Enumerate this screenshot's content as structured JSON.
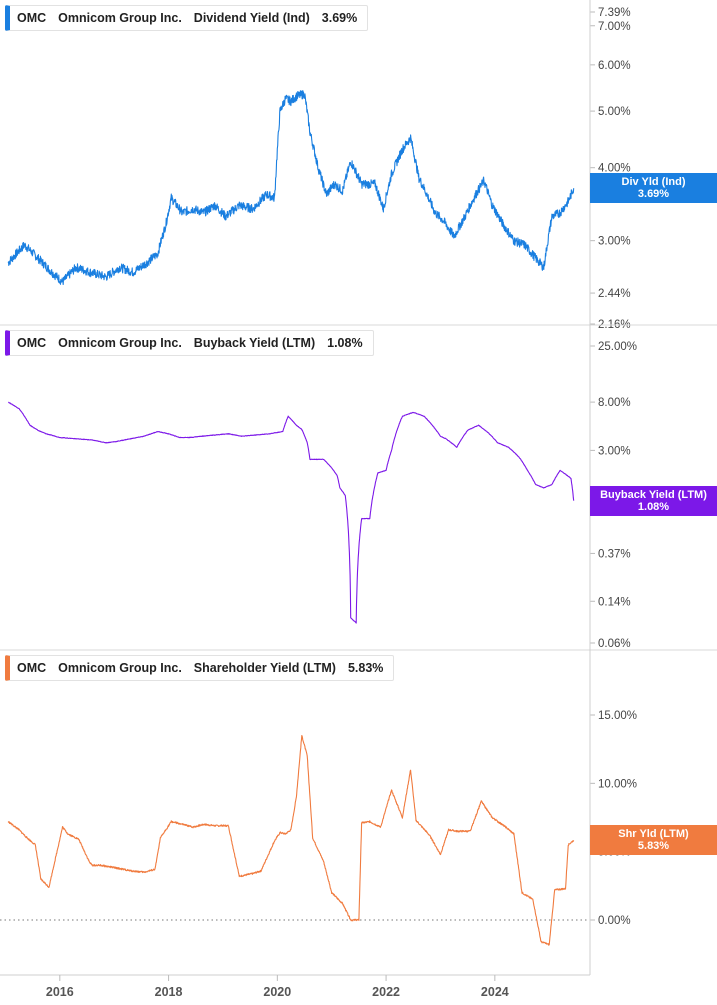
{
  "chart_data": [
    {
      "type": "line",
      "legend": {
        "ticker": "OMC",
        "company": "Omnicom Group Inc.",
        "metric": "Dividend Yield (Ind)",
        "value": "3.69%"
      },
      "tag": {
        "line1": "Div Yld (Ind)",
        "line2": "3.69%"
      },
      "color": "#1a7fe0",
      "y_scale": "log",
      "y_ticks": [
        "7.39%",
        "7.00%",
        "6.00%",
        "5.00%",
        "4.00%",
        "3.00%",
        "2.44%",
        "2.16%"
      ],
      "y_tick_values": [
        7.39,
        7.0,
        6.0,
        5.0,
        4.0,
        3.0,
        2.44,
        2.16
      ],
      "ylim": [
        2.16,
        7.39
      ],
      "series": [
        {
          "x": [
            2015.05,
            2015.35,
            2015.6,
            2015.85,
            2016.05,
            2016.3,
            2016.55,
            2016.85,
            2017.1,
            2017.35,
            2017.6,
            2017.8,
            2017.95,
            2018.05,
            2018.25,
            2018.45,
            2018.65,
            2018.85,
            2019.05,
            2019.3,
            2019.55,
            2019.8,
            2019.95,
            2020.05,
            2020.15,
            2020.25,
            2020.35,
            2020.5,
            2020.6,
            2020.75,
            2020.9,
            2021.05,
            2021.2,
            2021.35,
            2021.55,
            2021.8,
            2021.95,
            2022.1,
            2022.3,
            2022.45,
            2022.6,
            2022.75,
            2022.9,
            2023.05,
            2023.25,
            2023.45,
            2023.65,
            2023.8,
            2023.95,
            2024.15,
            2024.35,
            2024.55,
            2024.75,
            2024.9,
            2025.05,
            2025.2,
            2025.35,
            2025.45
          ],
          "y": [
            2.75,
            2.95,
            2.8,
            2.65,
            2.55,
            2.7,
            2.65,
            2.6,
            2.7,
            2.65,
            2.75,
            2.85,
            3.2,
            3.55,
            3.35,
            3.4,
            3.35,
            3.45,
            3.3,
            3.45,
            3.4,
            3.6,
            3.55,
            5.0,
            5.25,
            5.2,
            5.3,
            5.35,
            4.6,
            4.0,
            3.6,
            3.75,
            3.65,
            4.1,
            3.75,
            3.75,
            3.4,
            3.9,
            4.3,
            4.5,
            3.85,
            3.6,
            3.35,
            3.25,
            3.05,
            3.3,
            3.6,
            3.8,
            3.45,
            3.2,
            3.0,
            2.95,
            2.8,
            2.7,
            3.3,
            3.35,
            3.5,
            3.69
          ]
        }
      ]
    },
    {
      "type": "line",
      "legend": {
        "ticker": "OMC",
        "company": "Omnicom Group Inc.",
        "metric": "Buyback Yield (LTM)",
        "value": "1.08%"
      },
      "tag": {
        "line1": "Buyback Yield (LTM)",
        "line2": "1.08%"
      },
      "color": "#7c18e8",
      "y_scale": "log",
      "y_ticks": [
        "25.00%",
        "8.00%",
        "3.00%",
        "0.37%",
        "0.14%",
        "0.06%"
      ],
      "y_tick_values": [
        25.0,
        8.0,
        3.0,
        0.37,
        0.14,
        0.06
      ],
      "ylim": [
        0.06,
        25.0
      ],
      "series": [
        {
          "x": [
            2015.05,
            2015.25,
            2015.45,
            2015.6,
            2015.75,
            2016.0,
            2016.3,
            2016.6,
            2016.85,
            2017.05,
            2017.3,
            2017.55,
            2017.8,
            2018.0,
            2018.2,
            2018.4,
            2018.6,
            2018.85,
            2019.1,
            2019.35,
            2019.6,
            2019.85,
            2020.1,
            2020.2,
            2020.35,
            2020.45,
            2020.55,
            2020.6,
            2020.85,
            2021.0,
            2021.1,
            2021.15,
            2021.25,
            2021.35,
            2021.45,
            2021.55,
            2021.7,
            2021.85,
            2022.0,
            2022.1,
            2022.3,
            2022.5,
            2022.7,
            2022.85,
            2023.0,
            2023.1,
            2023.3,
            2023.5,
            2023.7,
            2023.9,
            2024.05,
            2024.25,
            2024.45,
            2024.6,
            2024.75,
            2024.9,
            2025.05,
            2025.2,
            2025.4,
            2025.45
          ],
          "y": [
            8.0,
            7.0,
            5.0,
            4.5,
            4.2,
            3.9,
            3.8,
            3.7,
            3.5,
            3.6,
            3.8,
            4.0,
            4.4,
            4.2,
            3.9,
            3.9,
            4.0,
            4.1,
            4.2,
            4.0,
            4.1,
            4.2,
            4.4,
            6.0,
            5.0,
            4.6,
            3.5,
            2.5,
            2.5,
            2.1,
            1.8,
            1.4,
            1.2,
            0.1,
            0.09,
            0.75,
            0.75,
            1.9,
            2.0,
            3.0,
            6.0,
            6.5,
            6.0,
            5.0,
            4.0,
            3.8,
            3.2,
            4.5,
            5.0,
            4.2,
            3.5,
            3.2,
            2.6,
            2.0,
            1.5,
            1.4,
            1.5,
            2.0,
            1.7,
            1.08
          ]
        }
      ]
    },
    {
      "type": "line",
      "legend": {
        "ticker": "OMC",
        "company": "Omnicom Group Inc.",
        "metric": "Shareholder Yield (LTM)",
        "value": "5.83%"
      },
      "tag": {
        "line1": "Shr Yld (LTM)",
        "line2": "5.83%"
      },
      "color": "#f07b3f",
      "y_scale": "linear",
      "y_ticks": [
        "15.00%",
        "10.00%",
        "5.00%",
        "0.00%"
      ],
      "y_tick_values": [
        15.0,
        10.0,
        5.0,
        0.0
      ],
      "ylim": [
        -4.0,
        17.0
      ],
      "series": [
        {
          "x": [
            2015.05,
            2015.25,
            2015.4,
            2015.55,
            2015.65,
            2015.8,
            2016.05,
            2016.15,
            2016.35,
            2016.55,
            2016.6,
            2016.75,
            2017.05,
            2017.3,
            2017.55,
            2017.75,
            2017.85,
            2018.05,
            2018.25,
            2018.45,
            2018.65,
            2018.85,
            2019.1,
            2019.3,
            2019.55,
            2019.7,
            2019.95,
            2020.05,
            2020.15,
            2020.25,
            2020.35,
            2020.45,
            2020.55,
            2020.65,
            2020.85,
            2021.0,
            2021.2,
            2021.35,
            2021.5,
            2021.55,
            2021.7,
            2021.9,
            2022.1,
            2022.3,
            2022.45,
            2022.55,
            2022.8,
            2023.0,
            2023.15,
            2023.3,
            2023.55,
            2023.75,
            2023.95,
            2024.2,
            2024.35,
            2024.5,
            2024.7,
            2024.85,
            2025.0,
            2025.1,
            2025.3,
            2025.35,
            2025.45
          ],
          "y": [
            7.2,
            6.6,
            6.0,
            5.5,
            3.0,
            2.4,
            6.8,
            6.3,
            5.9,
            4.2,
            4.0,
            4.0,
            3.8,
            3.6,
            3.5,
            3.7,
            6.0,
            7.2,
            7.0,
            6.8,
            7.0,
            6.9,
            6.9,
            3.2,
            3.4,
            3.6,
            5.8,
            6.4,
            6.3,
            6.6,
            9.0,
            13.5,
            12.0,
            6.0,
            4.3,
            2.0,
            1.2,
            0.0,
            0.0,
            7.1,
            7.2,
            6.8,
            9.5,
            7.5,
            11.0,
            7.3,
            6.2,
            4.8,
            6.6,
            6.5,
            6.5,
            8.7,
            7.5,
            6.8,
            6.3,
            2.0,
            1.5,
            -1.6,
            -1.8,
            2.2,
            2.3,
            5.5,
            5.83
          ]
        }
      ]
    }
  ],
  "x_axis": {
    "ticks": [
      "2016",
      "2018",
      "2020",
      "2022",
      "2024"
    ],
    "tick_values": [
      2016,
      2018,
      2020,
      2022,
      2024
    ],
    "xlim": [
      2014.9,
      2025.75
    ]
  }
}
